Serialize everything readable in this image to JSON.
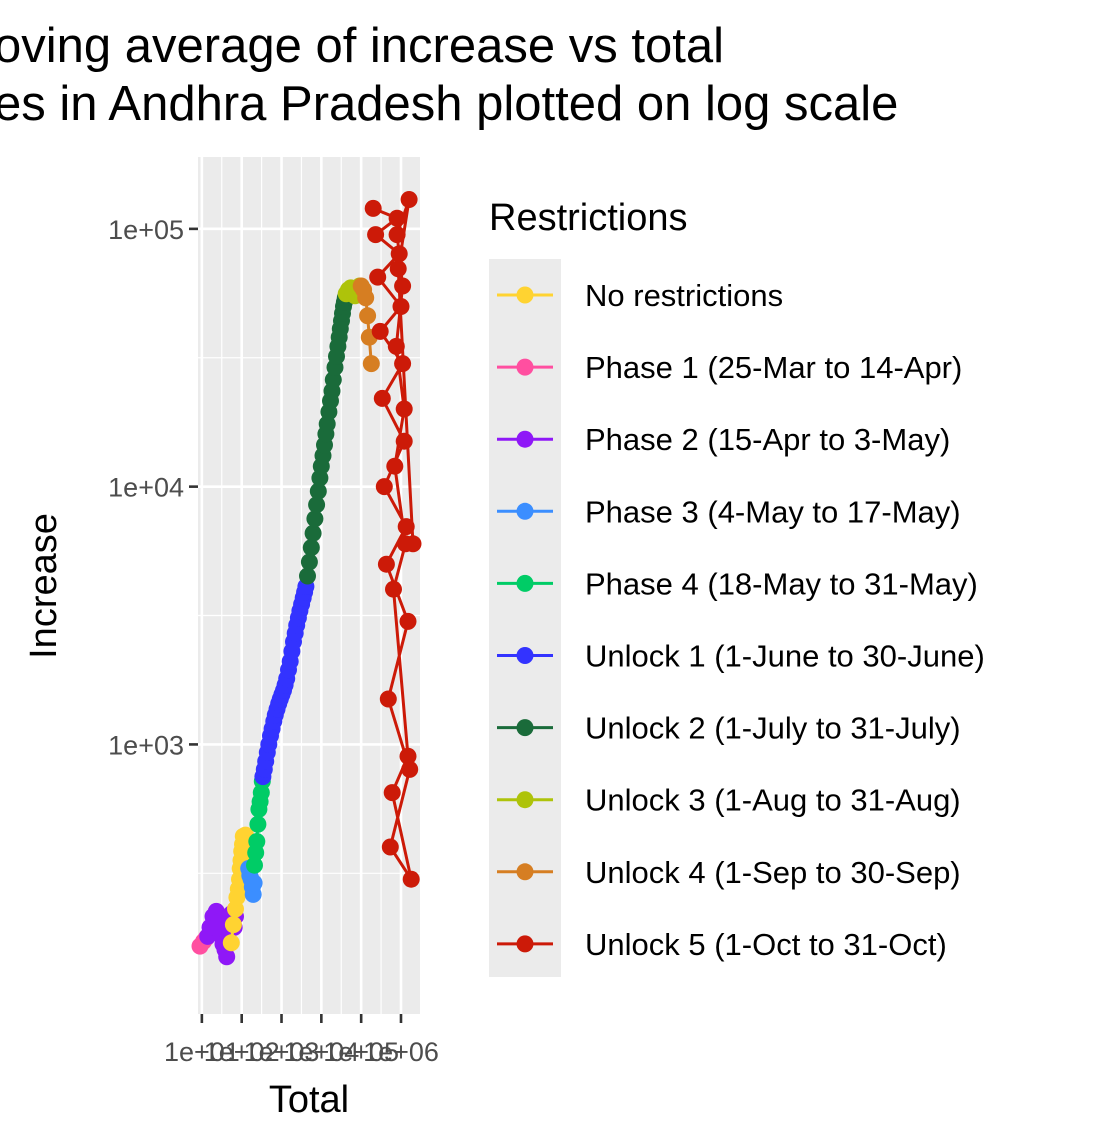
{
  "chart_data": {
    "type": "line",
    "title_lines": [
      "oving average of increase vs total",
      "es in Andhra Pradesh plotted on log scale"
    ],
    "xlabel": "Total",
    "ylabel": "Increase",
    "x_scale": "log10",
    "y_scale": "log10",
    "x_ticks": [
      "1e+01",
      "1e+02",
      "1e+03",
      "1e+04",
      "1e+05",
      "1e+06"
    ],
    "x_tick_values": [
      10,
      100,
      1000,
      10000,
      100000,
      1000000
    ],
    "y_ticks": [
      "1e+03",
      "1e+04",
      "1e+05"
    ],
    "y_tick_values": [
      1000,
      10000,
      100000
    ],
    "xlim": [
      8,
      3000000
    ],
    "ylim": [
      90,
      190000
    ],
    "grid": true,
    "legend": {
      "title": "Restrictions",
      "position": "right",
      "entries": [
        {
          "label": "No restrictions",
          "color": "#FFD331"
        },
        {
          "label": "Phase 1 (25-Mar to 14-Apr)",
          "color": "#FF4FA0"
        },
        {
          "label": "Phase 2 (15-Apr to 3-May)",
          "color": "#8F18F7"
        },
        {
          "label": "Phase 3 (4-May to 17-May)",
          "color": "#3B8EFF"
        },
        {
          "label": "Phase 4 (18-May to 31-May)",
          "color": "#00CC66"
        },
        {
          "label": "Unlock 1 (1-June to 30-June)",
          "color": "#3333FF"
        },
        {
          "label": "Unlock 2 (1-July to 31-July)",
          "color": "#1A6B3A"
        },
        {
          "label": "Unlock 3 (1-Aug to 31-Aug)",
          "color": "#AEC30A"
        },
        {
          "label": "Unlock 4 (1-Sep to 30-Sep)",
          "color": "#D67E22"
        },
        {
          "label": "Unlock 5 (1-Oct to 31-Oct)",
          "color": "#CC1A08"
        }
      ]
    },
    "series": [
      {
        "name": "Phase 1 (25-Mar to 14-Apr)",
        "color": "#FF4FA0",
        "x": [
          9,
          11,
          13
        ],
        "y": [
          165,
          172,
          178
        ]
      },
      {
        "name": "Phase 2 (15-Apr to 3-May)",
        "color": "#8F18F7",
        "x": [
          14,
          16,
          19,
          23,
          27,
          30,
          34,
          38,
          42,
          46,
          50,
          55,
          60,
          65,
          70
        ],
        "y": [
          180,
          195,
          215,
          225,
          205,
          182,
          168,
          160,
          150,
          170,
          200,
          220,
          210,
          195,
          215
        ]
      },
      {
        "name": "No restrictions",
        "color": "#FFD331",
        "x": [
          55,
          62,
          70,
          76,
          82,
          88,
          92,
          96,
          100,
          105,
          110,
          118,
          125,
          132,
          140
        ],
        "y": [
          170,
          200,
          230,
          255,
          275,
          300,
          330,
          355,
          385,
          410,
          440,
          420,
          445,
          410,
          380
        ]
      },
      {
        "name": "Phase 3 (4-May to 17-May)",
        "color": "#3B8EFF",
        "x": [
          150,
          160,
          172,
          185,
          195,
          205
        ],
        "y": [
          330,
          310,
          300,
          280,
          262,
          290
        ]
      },
      {
        "name": "Phase 4 (18-May to 31-May)",
        "color": "#00CC66",
        "x": [
          210,
          225,
          240,
          255,
          270,
          290,
          310,
          330
        ],
        "y": [
          340,
          380,
          420,
          490,
          560,
          600,
          650,
          720
        ]
      },
      {
        "name": "Unlock 1 (1-June to 30-June)",
        "color": "#3333FF",
        "x": [
          340,
          370,
          400,
          440,
          480,
          530,
          580,
          640,
          700,
          770,
          850,
          930,
          1020,
          1120,
          1230,
          1350,
          1500,
          1650,
          1820,
          2000,
          2200,
          2400,
          2650,
          2900,
          3200,
          3500,
          3800,
          4100
        ],
        "y": [
          750,
          800,
          860,
          930,
          1000,
          1080,
          1150,
          1230,
          1300,
          1370,
          1440,
          1500,
          1560,
          1620,
          1700,
          1800,
          1950,
          2100,
          2300,
          2500,
          2700,
          2900,
          3100,
          3300,
          3500,
          3700,
          3900,
          4100
        ]
      },
      {
        "name": "Unlock 2 (1-July to 31-July)",
        "color": "#1A6B3A",
        "x": [
          4500,
          5000,
          5600,
          6200,
          6900,
          7600,
          8400,
          9200,
          10000,
          11000,
          12000,
          13000,
          14000,
          15500,
          17000,
          18500,
          20000,
          22000,
          24000,
          26000,
          28000,
          30000,
          32000,
          34000,
          36000,
          38000,
          40000
        ],
        "y": [
          4500,
          5100,
          5800,
          6600,
          7500,
          8500,
          9600,
          10800,
          12000,
          13200,
          14500,
          16000,
          17500,
          19500,
          21500,
          23500,
          26000,
          29000,
          32000,
          35000,
          38000,
          41000,
          44000,
          47000,
          50000,
          52000,
          54000
        ]
      },
      {
        "name": "Unlock 3 (1-Aug to 31-Aug)",
        "color": "#AEC30A",
        "x": [
          42000,
          48000,
          55000,
          62000,
          70000,
          78000,
          85000,
          92000
        ],
        "y": [
          56000,
          58000,
          59000,
          57000,
          55000,
          56000,
          58000,
          60000
        ]
      },
      {
        "name": "Unlock 4 (1-Sep to 30-Sep)",
        "color": "#D67E22",
        "x": [
          100000,
          115000,
          130000,
          145000,
          160000,
          180000
        ],
        "y": [
          60000,
          58000,
          54000,
          46000,
          38000,
          30000
        ]
      },
      {
        "name": "Unlock 5 (1-Oct to 31-Oct)",
        "color": "#CC1A08",
        "x": [
          200000,
          800000,
          230000,
          900000,
          260000,
          1000000,
          300000,
          1100000,
          340000,
          1200000,
          380000,
          1350000,
          430000,
          1500000,
          480000,
          1650000,
          540000,
          1800000,
          600000,
          1500000,
          650000,
          1300000,
          700000,
          1200000,
          760000,
          1100000,
          800000,
          1600000,
          850000,
          2000000
        ],
        "y": [
          120000,
          110000,
          95000,
          80000,
          65000,
          50000,
          40000,
          30000,
          22000,
          15000,
          10000,
          7000,
          5000,
          3000,
          1500,
          800,
          400,
          300,
          650,
          900,
          4000,
          6000,
          12000,
          20000,
          35000,
          60000,
          95000,
          130000,
          70000,
          6000
        ]
      }
    ]
  }
}
